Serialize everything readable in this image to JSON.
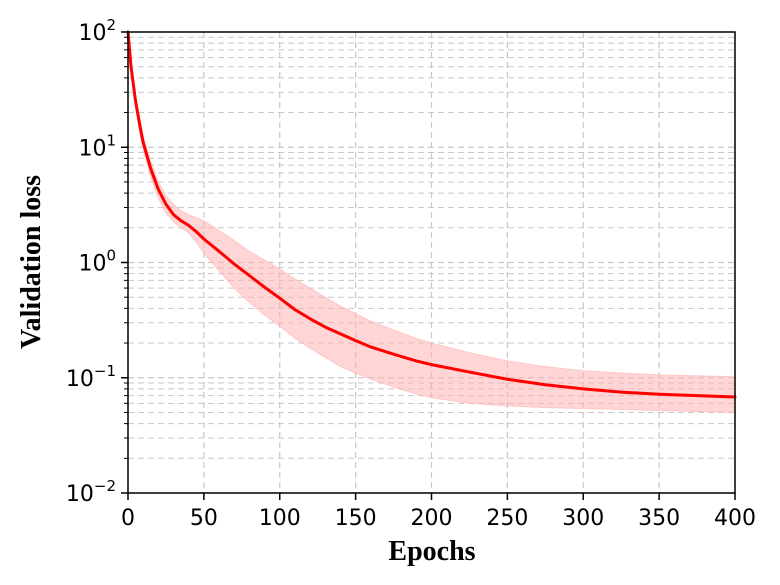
{
  "chart_data": {
    "type": "line",
    "xlabel": "Epochs",
    "ylabel": "Validation loss",
    "xlim": [
      0,
      400
    ],
    "ylim": [
      0.01,
      100
    ],
    "yscale": "log",
    "grid": true,
    "grid_style": "dashed, major and minor",
    "x_ticks": [
      "0",
      "50",
      "100",
      "150",
      "200",
      "250",
      "300",
      "350",
      "400"
    ],
    "y_ticks": [
      {
        "base": "10",
        "exp": "2",
        "value": 100
      },
      {
        "base": "10",
        "exp": "1",
        "value": 10
      },
      {
        "base": "10",
        "exp": "0",
        "value": 1
      },
      {
        "base": "10",
        "exp": "−1",
        "value": 0.1
      },
      {
        "base": "10",
        "exp": "−2",
        "value": 0.01
      }
    ],
    "colors": {
      "line": "#ff0000",
      "band": "#ffb3b3",
      "grid": "#c8c8c8"
    },
    "series": [
      {
        "x": [
          0,
          2,
          5,
          8,
          10,
          15,
          20,
          25,
          30,
          35,
          40,
          45,
          50,
          60,
          70,
          80,
          90,
          100,
          110,
          120,
          130,
          140,
          150,
          160,
          175,
          190,
          200,
          225,
          250,
          275,
          300,
          325,
          350,
          375,
          400
        ],
        "y": [
          100,
          50,
          25,
          15,
          11,
          6.5,
          4.3,
          3.2,
          2.6,
          2.3,
          2.1,
          1.85,
          1.6,
          1.25,
          0.97,
          0.77,
          0.61,
          0.49,
          0.39,
          0.325,
          0.275,
          0.24,
          0.21,
          0.185,
          0.16,
          0.14,
          0.13,
          0.112,
          0.097,
          0.087,
          0.08,
          0.075,
          0.072,
          0.07,
          0.068
        ],
        "lower": [
          100,
          45,
          22,
          13,
          9.5,
          5.5,
          3.6,
          2.7,
          2.25,
          2.0,
          1.8,
          1.5,
          1.2,
          0.85,
          0.6,
          0.45,
          0.35,
          0.28,
          0.22,
          0.18,
          0.15,
          0.125,
          0.11,
          0.097,
          0.083,
          0.072,
          0.067,
          0.06,
          0.057,
          0.055,
          0.054,
          0.053,
          0.052,
          0.051,
          0.05
        ],
        "upper": [
          100,
          55,
          28,
          17,
          12.5,
          7.5,
          5.0,
          3.8,
          3.2,
          2.8,
          2.6,
          2.45,
          2.3,
          1.9,
          1.55,
          1.25,
          1.05,
          0.88,
          0.72,
          0.6,
          0.5,
          0.42,
          0.36,
          0.31,
          0.26,
          0.22,
          0.2,
          0.165,
          0.14,
          0.125,
          0.115,
          0.11,
          0.106,
          0.104,
          0.102
        ]
      }
    ]
  }
}
